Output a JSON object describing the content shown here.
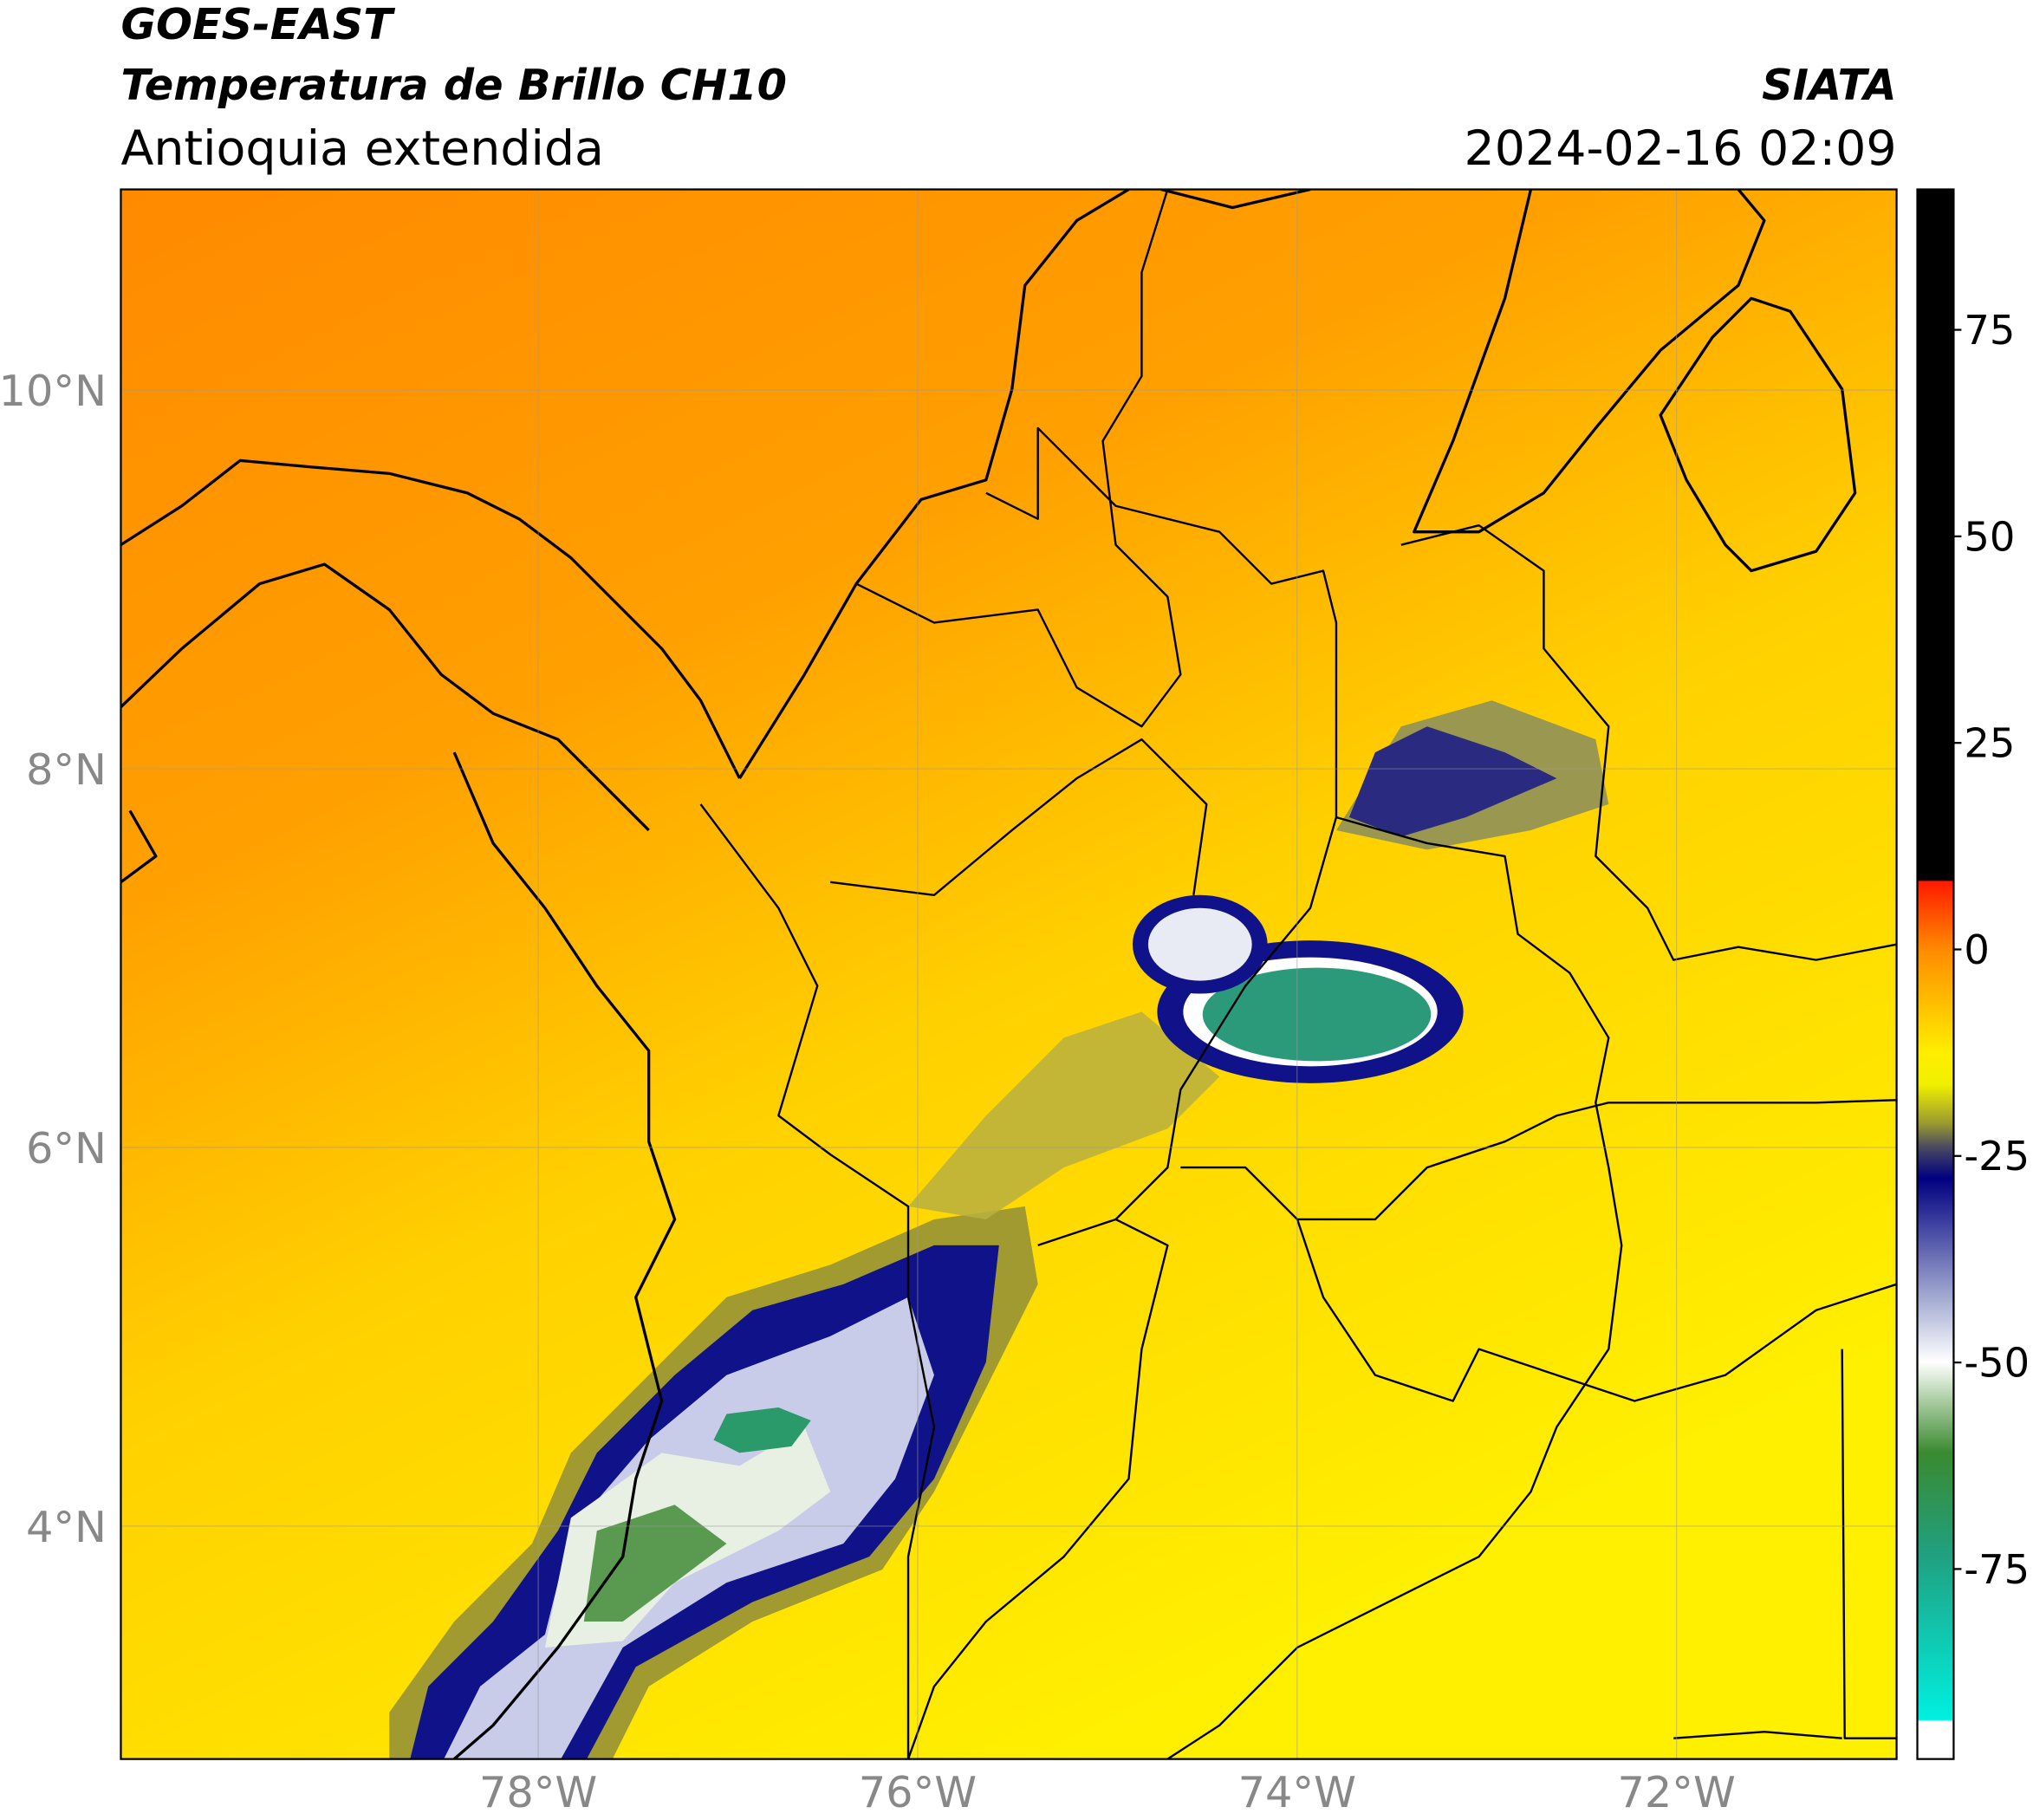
{
  "header": {
    "title": "GOES-EAST",
    "product": "Temperatura de Brillo CH10",
    "region": "Antioquia extendida",
    "source": "SIATA",
    "datetime": "2024-02-16 02:09"
  },
  "map": {
    "xlim": [
      -80.2,
      -70.84
    ],
    "ylim": [
      2.77,
      11.06
    ],
    "grid": true,
    "xticks": [
      {
        "value": -78,
        "label": "78°W"
      },
      {
        "value": -76,
        "label": "76°W"
      },
      {
        "value": -74,
        "label": "74°W"
      },
      {
        "value": -72,
        "label": "72°W"
      }
    ],
    "yticks": [
      {
        "value": 10,
        "label": "10°N"
      },
      {
        "value": 8,
        "label": "8°N"
      },
      {
        "value": 6,
        "label": "6°N"
      },
      {
        "value": 4,
        "label": "4°N"
      }
    ]
  },
  "colorbar": {
    "clim": [
      -98,
      92
    ],
    "ticks": [
      75,
      50,
      25,
      0,
      -25,
      -50,
      -75
    ]
  }
}
